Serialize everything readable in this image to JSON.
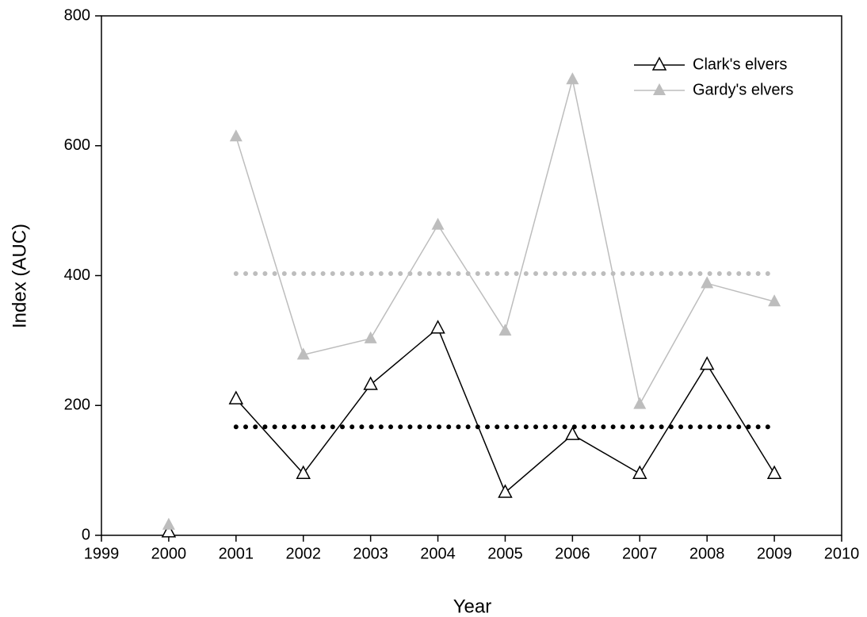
{
  "chart_data": {
    "type": "line",
    "x_label": "Year",
    "y_label": "Index (AUC)",
    "xlim": [
      1999,
      2010
    ],
    "xticks": [
      1999,
      2000,
      2001,
      2002,
      2003,
      2004,
      2005,
      2006,
      2007,
      2008,
      2009,
      2010
    ],
    "ylim": [
      0,
      800
    ],
    "yticks": [
      0,
      200,
      400,
      600,
      800
    ],
    "legend": "upper right",
    "series": [
      {
        "name": "Clark's elvers",
        "color": "#000000",
        "marker": "open-triangle",
        "x": [
          2001,
          2002,
          2003,
          2004,
          2005,
          2006,
          2007,
          2008,
          2009
        ],
        "values": [
          210,
          95,
          232,
          319,
          66,
          155,
          95,
          263,
          95
        ]
      },
      {
        "name": "Gardy's elvers",
        "color": "#bdbdbd",
        "marker": "filled-triangle",
        "x": [
          2001,
          2002,
          2003,
          2004,
          2005,
          2006,
          2007,
          2008,
          2009
        ],
        "values": [
          614,
          278,
          303,
          478,
          315,
          702,
          202,
          388,
          360
        ]
      },
      {
        "color": "#000000",
        "marker": "open-triangle",
        "x": [
          2000
        ],
        "values": [
          5
        ]
      },
      {
        "color": "#bdbdbd",
        "marker": "filled-triangle",
        "x": [
          2000
        ],
        "values": [
          16
        ]
      },
      {
        "color": "#000000",
        "style": "dotted",
        "x": [
          2001,
          2009
        ],
        "values": [
          167,
          167
        ]
      },
      {
        "color": "#bdbdbd",
        "style": "dotted",
        "x": [
          2001,
          2009
        ],
        "values": [
          403,
          403
        ]
      }
    ]
  }
}
